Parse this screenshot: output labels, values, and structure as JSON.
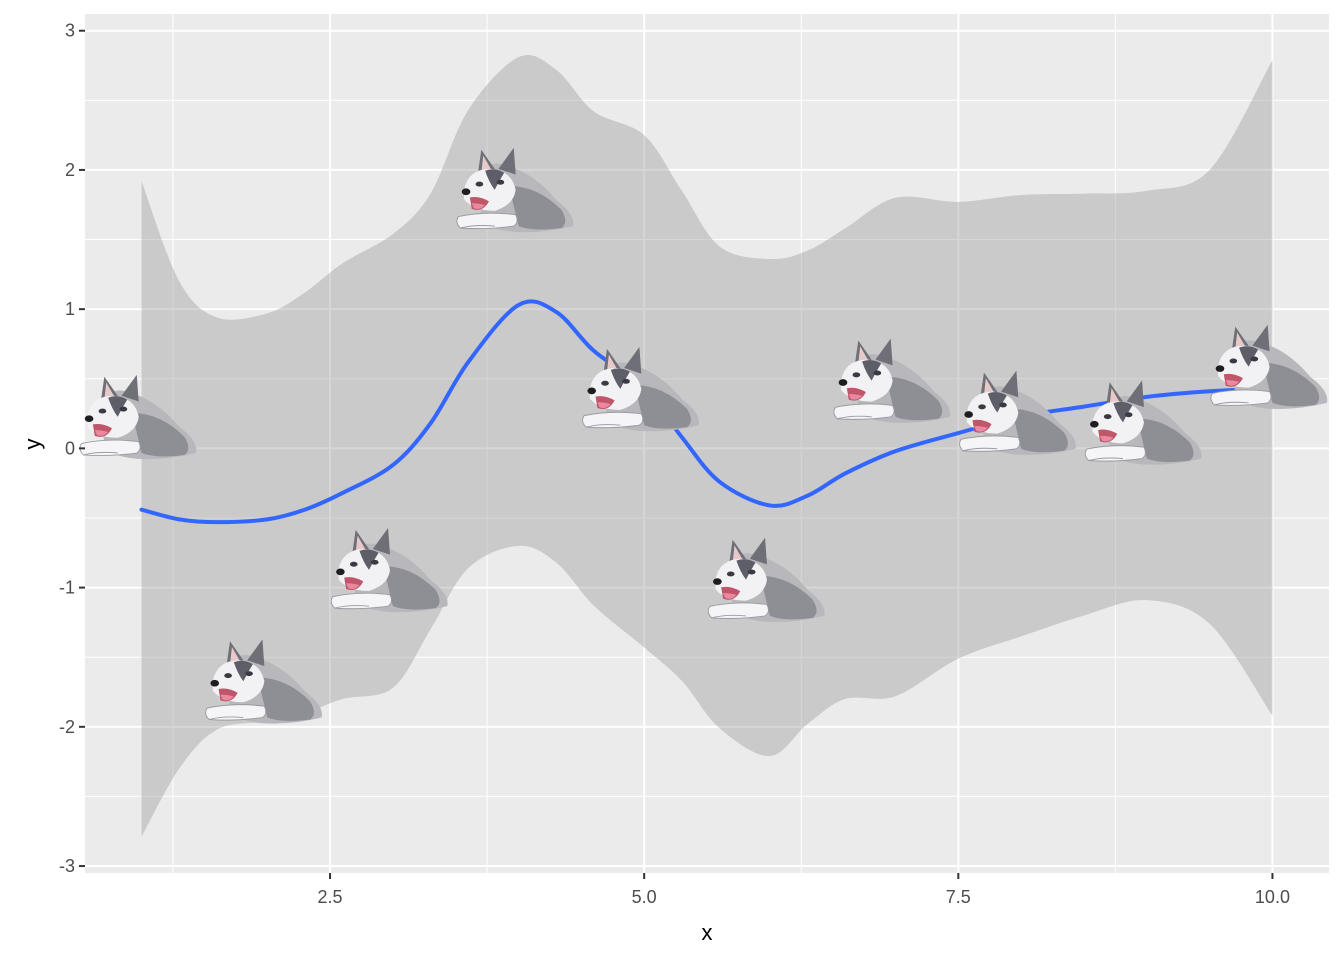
{
  "chart_data": {
    "type": "scatter",
    "xlabel": "x",
    "ylabel": "y",
    "xlim": [
      0.55,
      10.45
    ],
    "ylim": [
      -3.05,
      3.12
    ],
    "x_ticks": [
      2.5,
      5.0,
      7.5,
      10.0
    ],
    "x_tick_labels": [
      "2.5",
      "5.0",
      "7.5",
      "10.0"
    ],
    "y_ticks": [
      -3,
      -2,
      -1,
      0,
      1,
      2,
      3
    ],
    "y_tick_labels": [
      "-3",
      "-2",
      "-1",
      "0",
      "1",
      "2",
      "3"
    ],
    "grid": true,
    "legend": "none",
    "point_marker": "husky-dog-image",
    "points": [
      {
        "x": 1,
        "y": 0.22
      },
      {
        "x": 2,
        "y": -1.68
      },
      {
        "x": 3,
        "y": -0.88
      },
      {
        "x": 4,
        "y": 1.85
      },
      {
        "x": 5,
        "y": 0.42
      },
      {
        "x": 6,
        "y": -0.95
      },
      {
        "x": 7,
        "y": 0.48
      },
      {
        "x": 8,
        "y": 0.25
      },
      {
        "x": 9,
        "y": 0.18
      },
      {
        "x": 10,
        "y": 0.58
      }
    ],
    "smooth_line": {
      "color": "#3366ff",
      "x": [
        1.0,
        1.3,
        1.6,
        2.0,
        2.3,
        2.6,
        3.0,
        3.3,
        3.6,
        4.0,
        4.3,
        4.6,
        5.0,
        5.3,
        5.6,
        6.0,
        6.3,
        6.6,
        7.0,
        7.5,
        8.0,
        8.5,
        9.0,
        9.5,
        10.0
      ],
      "y": [
        -0.44,
        -0.51,
        -0.53,
        -0.51,
        -0.44,
        -0.32,
        -0.12,
        0.18,
        0.62,
        1.03,
        0.98,
        0.7,
        0.43,
        0.08,
        -0.24,
        -0.41,
        -0.34,
        -0.18,
        -0.02,
        0.11,
        0.23,
        0.3,
        0.37,
        0.41,
        0.43
      ],
      "ci_upper": [
        1.92,
        1.2,
        0.94,
        0.97,
        1.12,
        1.33,
        1.54,
        1.83,
        2.43,
        2.81,
        2.72,
        2.42,
        2.25,
        1.85,
        1.45,
        1.36,
        1.42,
        1.58,
        1.8,
        1.77,
        1.82,
        1.83,
        1.85,
        2.0,
        2.79
      ],
      "ci_lower": [
        -2.79,
        -2.3,
        -2.02,
        -1.96,
        -1.9,
        -1.8,
        -1.72,
        -1.3,
        -0.86,
        -0.7,
        -0.82,
        -1.13,
        -1.43,
        -1.67,
        -2.01,
        -2.21,
        -1.98,
        -1.8,
        -1.78,
        -1.51,
        -1.35,
        -1.2,
        -1.09,
        -1.26,
        -1.92
      ],
      "ci_color": "#999999"
    },
    "colors": {
      "panel_background": "#ebebeb",
      "grid_major": "#ffffff",
      "line": "#3366ff",
      "ribbon": "#999999",
      "tick_text": "#4d4d4d"
    }
  }
}
